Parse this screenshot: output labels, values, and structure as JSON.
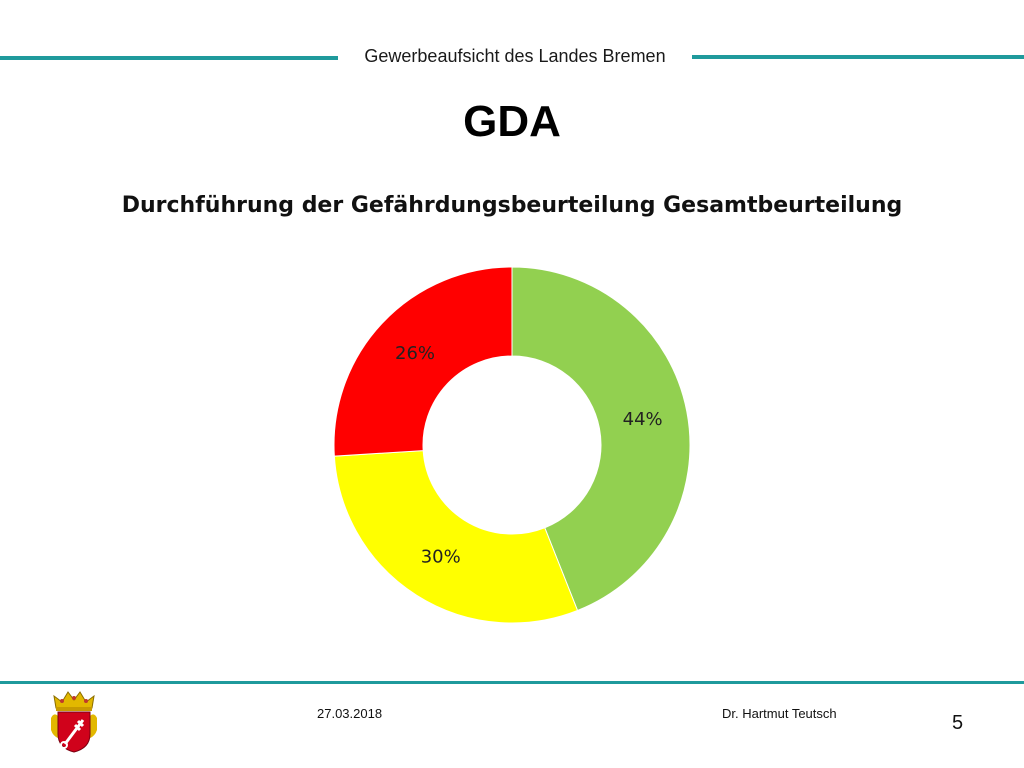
{
  "header": {
    "organization": "Gewerbeaufsicht des Landes Bremen"
  },
  "slide": {
    "title": "GDA"
  },
  "chart_data": {
    "type": "pie",
    "title": "Durchführung der Gefährdungsbeurteilung Gesamtbeurteilung",
    "donut": true,
    "slices": [
      {
        "label": "44%",
        "value": 44,
        "color": "#92d050"
      },
      {
        "label": "30%",
        "value": 30,
        "color": "#ffff00"
      },
      {
        "label": "26%",
        "value": 26,
        "color": "#ff0000"
      }
    ],
    "legend": "none"
  },
  "footer": {
    "date": "27.03.2018",
    "author": "Dr. Hartmut Teutsch",
    "page_number": "5"
  },
  "colors": {
    "accent": "#1f9a9c"
  },
  "icons": {
    "logo": "bremen-coat-of-arms-icon"
  }
}
